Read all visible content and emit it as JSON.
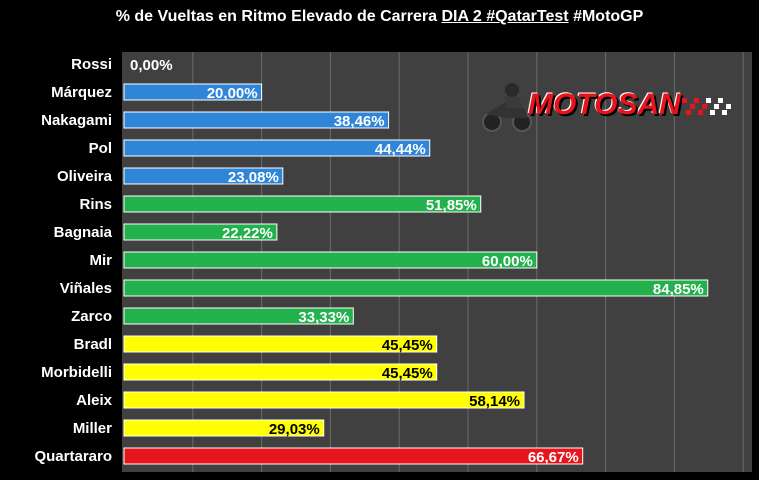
{
  "title": {
    "part1": "% de Vueltas en Ritmo Elevado de Carrera",
    "part2": "DIA 2 #QatarTest",
    "part3": "#MotoGP"
  },
  "logo": {
    "text": "MOTOSAN",
    "icon": "motorcycle-rider-icon"
  },
  "colors": {
    "background": "#000000",
    "plot_area": "#404040",
    "gridline": "#6a6a6a",
    "blue": "#2f86d8",
    "green": "#22b14c",
    "yellow": "#ffff00",
    "red": "#e8141c"
  },
  "chart_data": {
    "type": "bar",
    "orientation": "horizontal",
    "xlim": [
      0,
      100
    ],
    "grid": true,
    "categories": [
      "Rossi",
      "Márquez",
      "Nakagami",
      "Pol",
      "Oliveira",
      "Rins",
      "Bagnaia",
      "Mir",
      "Viñales",
      "Zarco",
      "Bradl",
      "Morbidelli",
      "Aleix",
      "Miller",
      "Quartararo"
    ],
    "values": [
      0.0,
      20.0,
      38.46,
      44.44,
      23.08,
      51.85,
      22.22,
      60.0,
      84.85,
      33.33,
      45.45,
      45.45,
      58.14,
      29.03,
      66.67
    ],
    "value_labels": [
      "0,00%",
      "20,00%",
      "38,46%",
      "44,44%",
      "23,08%",
      "51,85%",
      "22,22%",
      "60,00%",
      "84,85%",
      "33,33%",
      "45,45%",
      "45,45%",
      "58,14%",
      "29,03%",
      "66,67%"
    ],
    "bar_colors": [
      "#2f86d8",
      "#2f86d8",
      "#2f86d8",
      "#2f86d8",
      "#2f86d8",
      "#22b14c",
      "#22b14c",
      "#22b14c",
      "#22b14c",
      "#22b14c",
      "#ffff00",
      "#ffff00",
      "#ffff00",
      "#ffff00",
      "#e8141c"
    ],
    "label_colors": [
      "#ffffff",
      "#ffffff",
      "#ffffff",
      "#ffffff",
      "#ffffff",
      "#ffffff",
      "#ffffff",
      "#ffffff",
      "#ffffff",
      "#ffffff",
      "#000000",
      "#000000",
      "#000000",
      "#000000",
      "#ffffff"
    ]
  }
}
